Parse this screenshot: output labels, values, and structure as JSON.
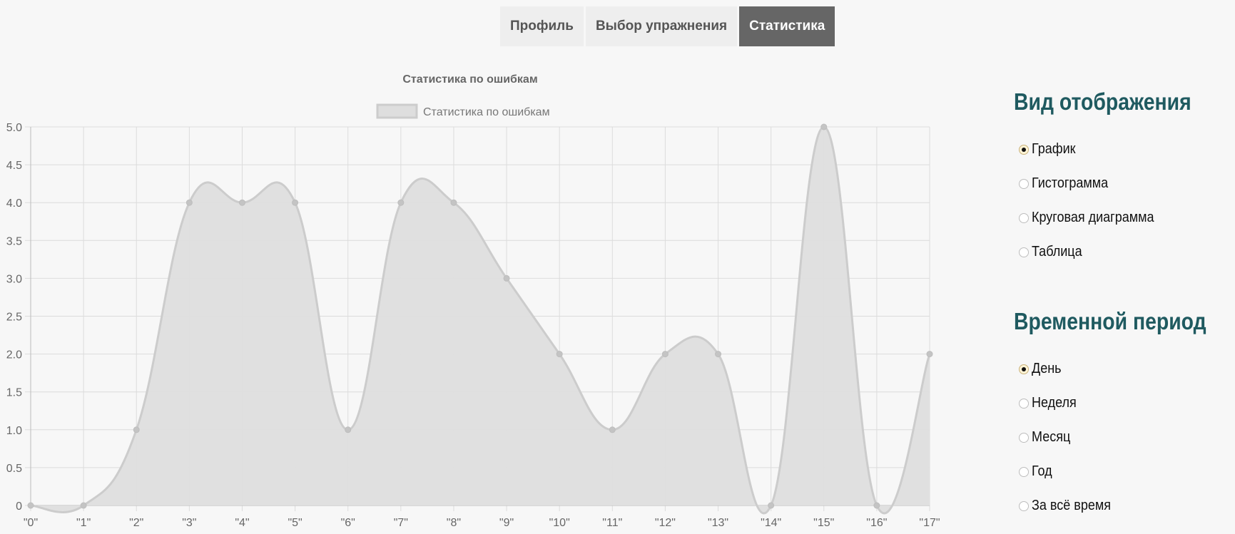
{
  "tabs": [
    {
      "label": "Профиль",
      "active": false
    },
    {
      "label": "Выбор упражнения",
      "active": false
    },
    {
      "label": "Статистика",
      "active": true
    }
  ],
  "display_view": {
    "title": "Вид отображения",
    "options": [
      {
        "label": "График",
        "checked": true
      },
      {
        "label": "Гистограмма",
        "checked": false
      },
      {
        "label": "Круговая диаграмма",
        "checked": false
      },
      {
        "label": "Таблица",
        "checked": false
      }
    ]
  },
  "time_period": {
    "title": "Временной период",
    "options": [
      {
        "label": "День",
        "checked": true
      },
      {
        "label": "Неделя",
        "checked": false
      },
      {
        "label": "Месяц",
        "checked": false
      },
      {
        "label": "Год",
        "checked": false
      },
      {
        "label": "За всё время",
        "checked": false
      }
    ]
  },
  "chart_data": {
    "type": "area",
    "title": "Статистика по ошибкам",
    "legend": {
      "label": "Статистика по ошибкам",
      "position": "top"
    },
    "categories": [
      "\"0\"",
      "\"1\"",
      "\"2\"",
      "\"3\"",
      "\"4\"",
      "\"5\"",
      "\"6\"",
      "\"7\"",
      "\"8\"",
      "\"9\"",
      "\"10\"",
      "\"11\"",
      "\"12\"",
      "\"13\"",
      "\"14\"",
      "\"15\"",
      "\"16\"",
      "\"17\""
    ],
    "series": [
      {
        "name": "Статистика по ошибкам",
        "values": [
          0,
          0,
          1,
          4,
          4,
          4,
          1,
          4,
          4,
          3,
          2,
          1,
          2,
          2,
          0,
          5,
          0,
          2
        ]
      }
    ],
    "ylim": [
      0,
      5
    ],
    "yticks": [
      "0",
      "0.5",
      "1.0",
      "1.5",
      "2.0",
      "2.5",
      "3.0",
      "3.5",
      "4.0",
      "4.5",
      "5.0"
    ],
    "grid": true,
    "colors": {
      "fill": "#dedede",
      "line": "#cccccc",
      "grid": "#dcdcdc",
      "point": "#c4c4c4",
      "text": "#666666"
    }
  }
}
